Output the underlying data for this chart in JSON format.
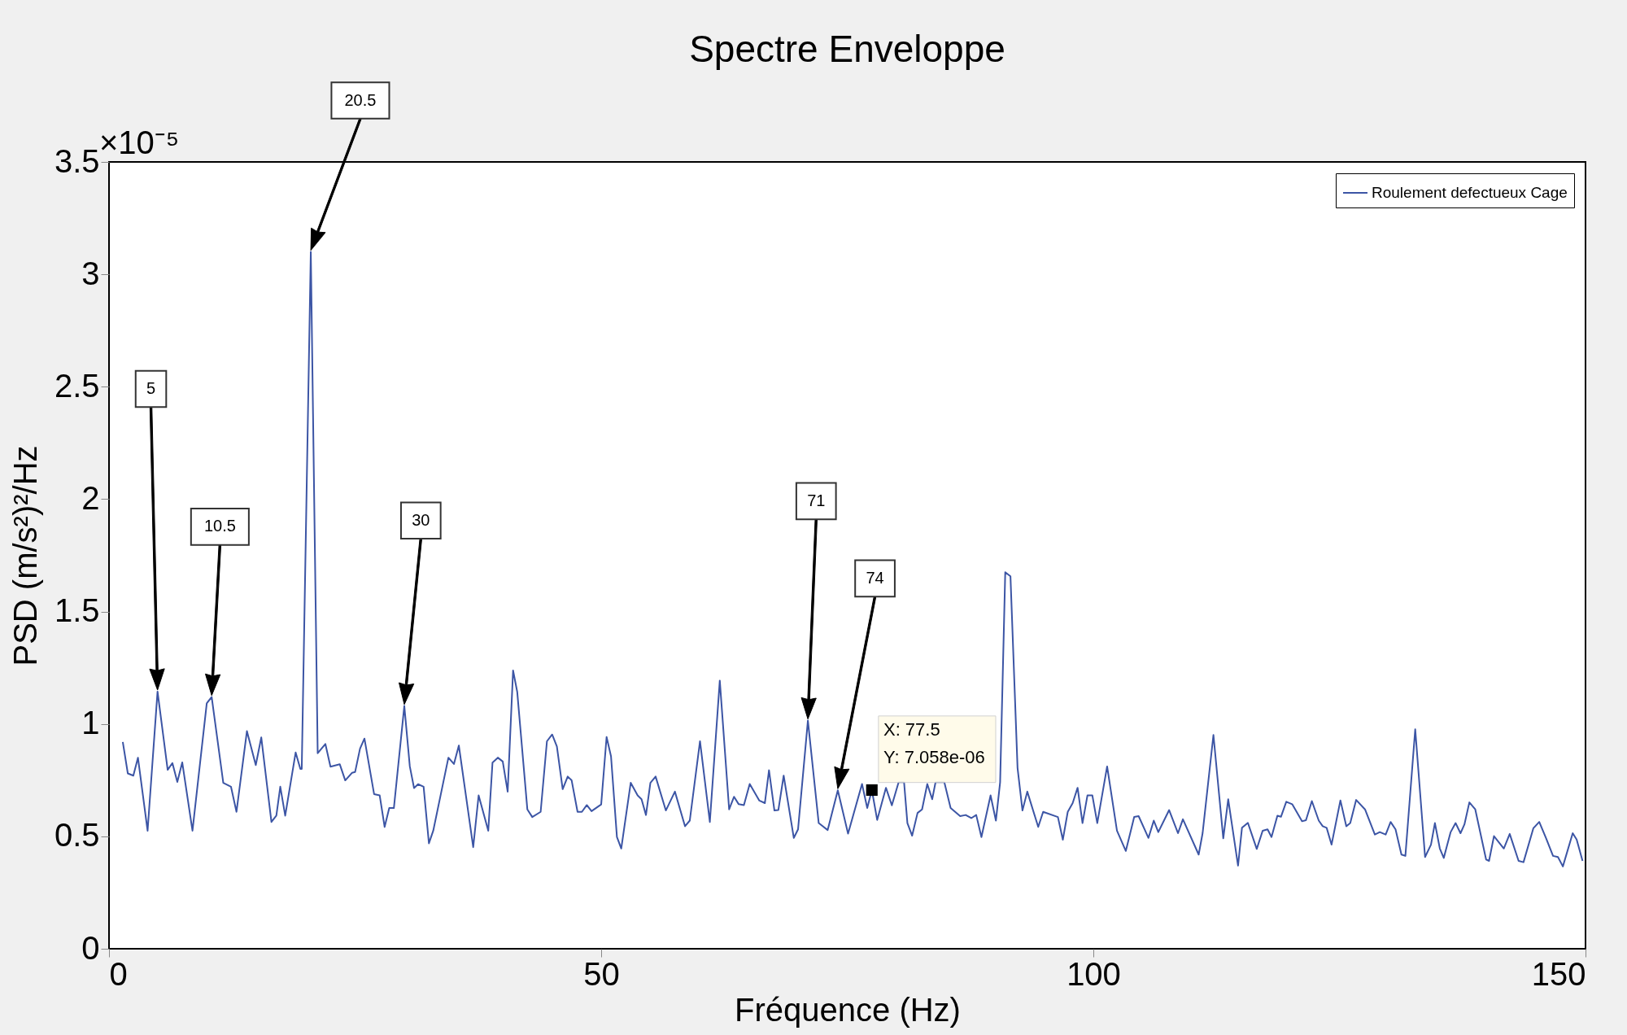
{
  "chart_data": {
    "type": "line",
    "title": "Spectre Enveloppe",
    "xlabel": "Fréquence (Hz)",
    "ylabel": "PSD (m/s²)²/Hz",
    "xlim": [
      0,
      150
    ],
    "xticks": [
      0,
      50,
      100,
      150
    ],
    "ylim": [
      0,
      3.5
    ],
    "yticks": [
      0,
      0.5,
      1,
      1.5,
      2,
      2.5,
      3,
      3.5
    ],
    "grid": false,
    "legend": "top right",
    "series": [
      {
        "name": "Roulement defectueux Cage",
        "color": "#3c55a5",
        "x": [
          1.4,
          1.91,
          2.47,
          2.94,
          3.92,
          4.93,
          5.96,
          6.44,
          6.94,
          7.44,
          8.48,
          9.93,
          10.43,
          11.61,
          12.39,
          12.95,
          14.01,
          14.91,
          15.47,
          16.5,
          17.0,
          17.4,
          17.9,
          18.96,
          19.44,
          19.58,
          20.5,
          21.2,
          21.98,
          22.5,
          23.44,
          24.0,
          24.7,
          25.0,
          25.5,
          25.95,
          26.93,
          27.5,
          28.0,
          28.47,
          28.94,
          30.0,
          30.56,
          30.99,
          31.4,
          31.96,
          32.5,
          32.94,
          34.48,
          35.04,
          35.54,
          37.0,
          37.55,
          38.53,
          38.96,
          39.5,
          40.0,
          40.5,
          41.05,
          41.47,
          42.5,
          43.0,
          43.85,
          44.49,
          45.02,
          45.5,
          46.09,
          46.6,
          47.0,
          47.6,
          48.04,
          48.54,
          49.02,
          50.0,
          50.55,
          51.0,
          51.6,
          52.04,
          53.0,
          53.7,
          54.1,
          54.55,
          55.0,
          55.53,
          56.57,
          57.49,
          58.52,
          59.0,
          60.04,
          61.04,
          62.05,
          63.0,
          63.5,
          63.97,
          64.5,
          65.09,
          66.07,
          66.63,
          67.05,
          67.6,
          68.0,
          68.54,
          69.57,
          70.0,
          71.0,
          72.1,
          73.01,
          74.04,
          75.08,
          76.5,
          77.03,
          77.5,
          78.04,
          78.93,
          79.53,
          80.22,
          80.77,
          81.11,
          81.59,
          82.14,
          82.6,
          83.13,
          83.63,
          83.97,
          84.86,
          85.5,
          86.47,
          87.03,
          87.6,
          88.1,
          88.63,
          89.56,
          90.1,
          90.53,
          91.05,
          91.58,
          92.3,
          92.8,
          93.29,
          94.4,
          94.9,
          96.4,
          96.9,
          97.4,
          97.9,
          98.4,
          98.9,
          99.4,
          99.9,
          100.4,
          101.4,
          102.4,
          103.3,
          104.15,
          104.6,
          105.6,
          106.14,
          106.6,
          107.7,
          108.6,
          109.1,
          110.7,
          111.1,
          112.2,
          113.2,
          113.7,
          114.7,
          115.1,
          115.7,
          116.6,
          117.2,
          117.7,
          118.1,
          118.7,
          119.06,
          119.6,
          120.2,
          121.2,
          121.6,
          122.2,
          122.9,
          123.3,
          123.7,
          124.2,
          125.1,
          125.7,
          126.1,
          126.7,
          127.6,
          128.6,
          129.1,
          129.7,
          130.2,
          130.7,
          131.3,
          131.7,
          132.7,
          133.7,
          134.3,
          134.7,
          135.2,
          135.6,
          136.3,
          136.8,
          137.3,
          137.7,
          138.2,
          138.8,
          139.9,
          140.2,
          140.7,
          141.7,
          142.3,
          143.2,
          143.7,
          144.7,
          145.3,
          146.0,
          146.7,
          147.2,
          147.7,
          148.7,
          149.1,
          149.7
        ],
        "values": [
          0.92,
          0.78,
          0.77,
          0.85,
          0.525,
          1.144,
          0.796,
          0.826,
          0.742,
          0.829,
          0.525,
          1.092,
          1.12,
          0.738,
          0.721,
          0.609,
          0.968,
          0.817,
          0.94,
          0.564,
          0.592,
          0.721,
          0.592,
          0.873,
          0.8,
          0.8,
          3.1,
          0.87,
          0.911,
          0.81,
          0.821,
          0.749,
          0.783,
          0.786,
          0.89,
          0.935,
          0.688,
          0.682,
          0.542,
          0.626,
          0.626,
          1.08,
          0.811,
          0.715,
          0.732,
          0.721,
          0.469,
          0.525,
          0.85,
          0.822,
          0.904,
          0.452,
          0.682,
          0.525,
          0.828,
          0.85,
          0.833,
          0.699,
          1.238,
          1.143,
          0.62,
          0.586,
          0.609,
          0.923,
          0.953,
          0.9,
          0.71,
          0.766,
          0.749,
          0.609,
          0.609,
          0.639,
          0.612,
          0.642,
          0.942,
          0.856,
          0.497,
          0.446,
          0.738,
          0.682,
          0.665,
          0.595,
          0.738,
          0.766,
          0.615,
          0.699,
          0.545,
          0.57,
          0.923,
          0.564,
          1.193,
          0.62,
          0.676,
          0.643,
          0.639,
          0.733,
          0.659,
          0.648,
          0.794,
          0.615,
          0.617,
          0.77,
          0.493,
          0.531,
          1.015,
          0.559,
          0.528,
          0.705,
          0.512,
          0.733,
          0.626,
          0.7058,
          0.573,
          0.716,
          0.638,
          0.741,
          0.741,
          0.559,
          0.503,
          0.604,
          0.62,
          0.733,
          0.665,
          0.741,
          0.741,
          0.626,
          0.59,
          0.595,
          0.581,
          0.595,
          0.497,
          0.682,
          0.57,
          0.741,
          1.675,
          1.657,
          0.804,
          0.615,
          0.699,
          0.542,
          0.609,
          0.586,
          0.485,
          0.609,
          0.648,
          0.716,
          0.559,
          0.682,
          0.682,
          0.559,
          0.811,
          0.525,
          0.435,
          0.586,
          0.59,
          0.493,
          0.57,
          0.519,
          0.617,
          0.514,
          0.576,
          0.419,
          0.514,
          0.951,
          0.491,
          0.665,
          0.37,
          0.538,
          0.56,
          0.444,
          0.525,
          0.531,
          0.497,
          0.592,
          0.587,
          0.654,
          0.643,
          0.567,
          0.572,
          0.657,
          0.57,
          0.545,
          0.538,
          0.463,
          0.66,
          0.545,
          0.559,
          0.662,
          0.62,
          0.508,
          0.519,
          0.508,
          0.564,
          0.531,
          0.419,
          0.413,
          0.976,
          0.408,
          0.463,
          0.559,
          0.446,
          0.404,
          0.519,
          0.559,
          0.514,
          0.553,
          0.651,
          0.62,
          0.397,
          0.391,
          0.501,
          0.446,
          0.511,
          0.391,
          0.385,
          0.536,
          0.564,
          0.491,
          0.413,
          0.408,
          0.366,
          0.514,
          0.486,
          0.391
        ]
      }
    ],
    "annotations": [
      "×10⁻⁵",
      "5",
      "10.5",
      "20.5",
      "30",
      "71",
      "74",
      {
        "text": "X: 77.5\nY: 7.058e-06",
        "x": 77.5,
        "y": 0.7058
      }
    ]
  }
}
